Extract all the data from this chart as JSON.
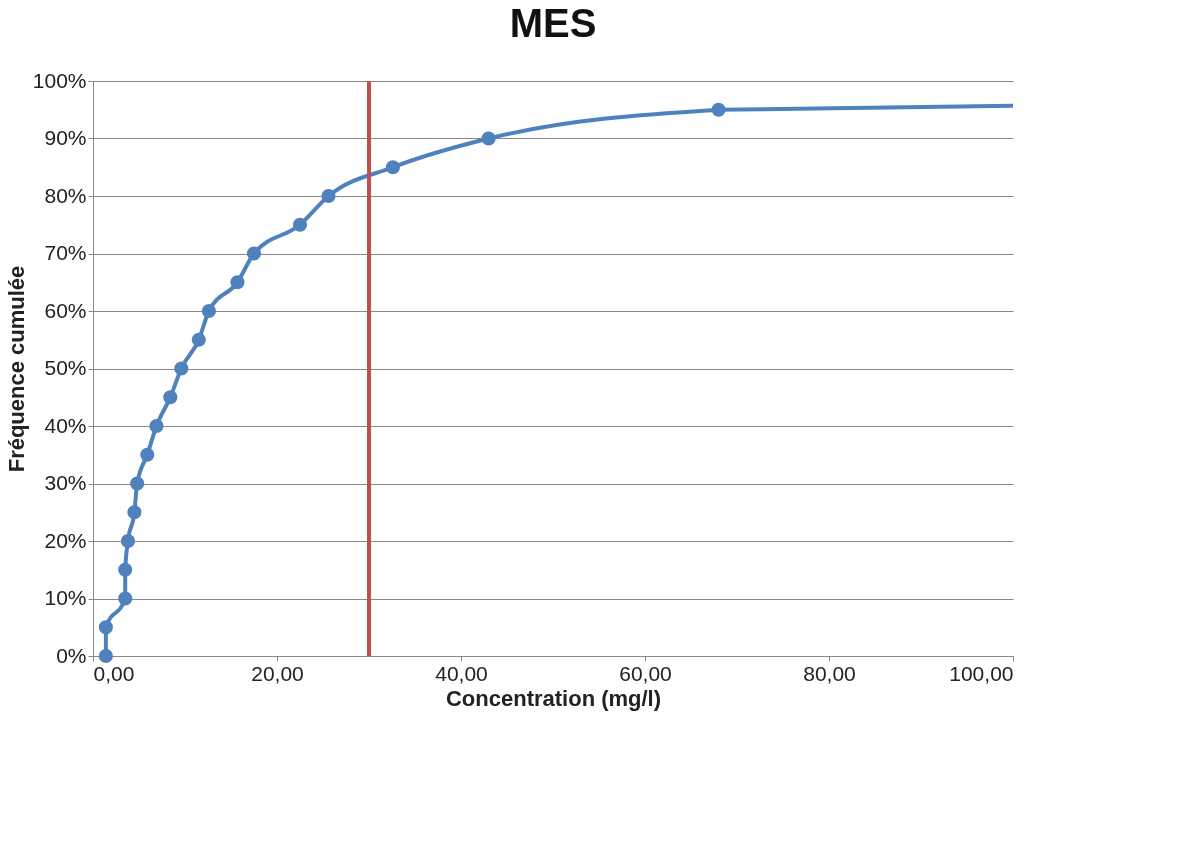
{
  "chart_data": {
    "type": "line",
    "title": "MES",
    "xlabel": "Concentration (mg/l)",
    "ylabel": "Fréquence cumulée",
    "series": [
      {
        "color": "#4f81bd",
        "marker": "circle",
        "x": [
          1.4,
          1.4,
          3.5,
          3.5,
          3.8,
          4.5,
          4.8,
          5.9,
          6.9,
          8.4,
          9.6,
          11.5,
          12.6,
          15.7,
          17.5,
          22.5,
          25.6,
          32.6,
          43,
          68
        ],
        "values": [
          0,
          5,
          10,
          15,
          20,
          25,
          30,
          35,
          40,
          45,
          50,
          55,
          60,
          65,
          70,
          75,
          80,
          85,
          90,
          95
        ]
      },
      {
        "color": "#4f81bd",
        "marker": "none",
        "x": [
          68,
          100
        ],
        "values": [
          95,
          95.7
        ]
      }
    ],
    "xlim": [
      0,
      100
    ],
    "xticks": [
      {
        "value": 0,
        "label": "0,00"
      },
      {
        "value": 20,
        "label": "20,00"
      },
      {
        "value": 40,
        "label": "40,00"
      },
      {
        "value": 60,
        "label": "60,00"
      },
      {
        "value": 80,
        "label": "80,00"
      },
      {
        "value": 100,
        "label": "100,00"
      }
    ],
    "ylim": [
      0,
      100
    ],
    "yticks": [
      {
        "value": 0,
        "label": "0%"
      },
      {
        "value": 10,
        "label": "10%"
      },
      {
        "value": 20,
        "label": "20%"
      },
      {
        "value": 30,
        "label": "30%"
      },
      {
        "value": 40,
        "label": "40%"
      },
      {
        "value": 50,
        "label": "50%"
      },
      {
        "value": 60,
        "label": "60%"
      },
      {
        "value": 70,
        "label": "70%"
      },
      {
        "value": 80,
        "label": "80%"
      },
      {
        "value": 90,
        "label": "90%"
      },
      {
        "value": 100,
        "label": "100%"
      }
    ],
    "ref_lines": [
      {
        "axis": "x",
        "value": 30,
        "color": "#c0504d"
      }
    ],
    "grid": "y",
    "line_style": "solid"
  }
}
